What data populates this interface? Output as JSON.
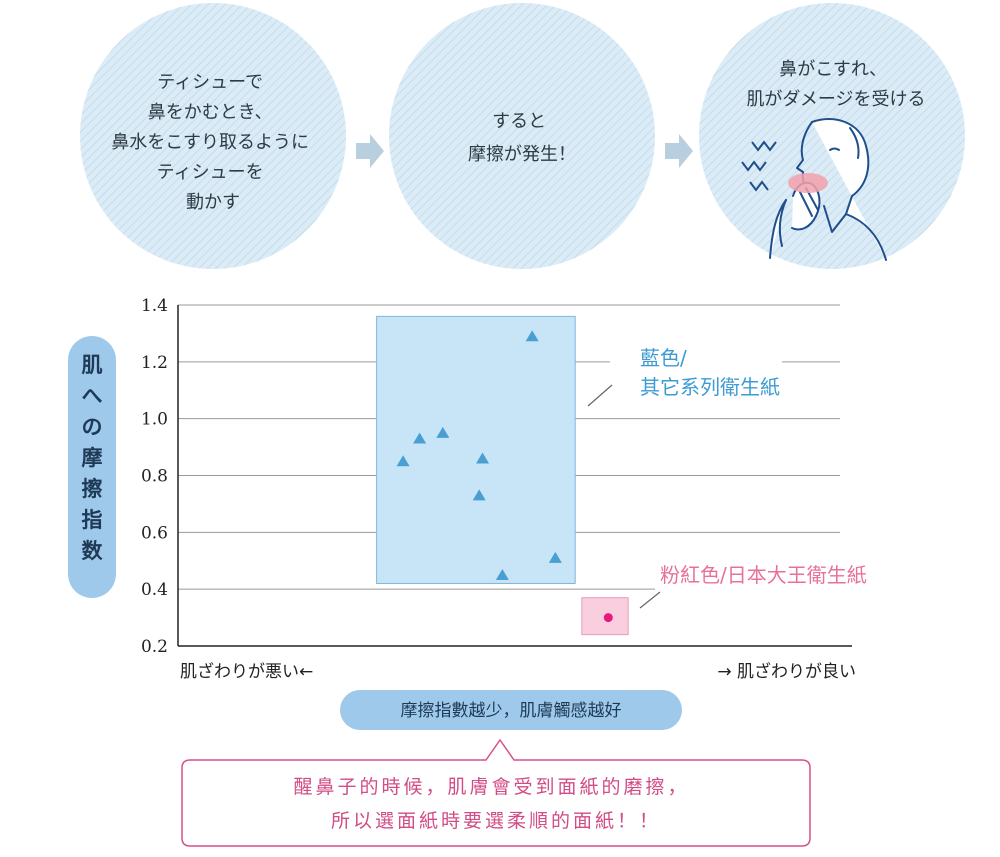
{
  "steps": [
    {
      "lines": [
        "ティシューで",
        "鼻をかむとき、",
        "鼻水をこすり取るように",
        "ティシューを",
        "動かす"
      ]
    },
    {
      "lines": [
        "すると",
        "摩擦が発生！"
      ]
    },
    {
      "lines": [
        "鼻がこすれ、",
        "肌がダメージを受ける"
      ]
    }
  ],
  "colors": {
    "circle_fill": "#dcecf6",
    "arrow": "#b8cfe0",
    "blue_region": "#c8e4f7",
    "blue_marker": "#4a9fd2",
    "pink_region": "#f9cfe0",
    "pink_marker": "#e8197a",
    "pill": "#9ec9ea",
    "note_border": "#d94f8c"
  },
  "chart_data": {
    "type": "scatter",
    "ylabel": "肌への摩擦指数",
    "ylim": [
      0.2,
      1.4
    ],
    "yticks": [
      "0.2",
      "0.4",
      "0.6",
      "0.8",
      "1.0",
      "1.2",
      "1.4"
    ],
    "x_left_label": "肌ざわりが悪い←",
    "x_right_label": "→ 肌ざわりが良い",
    "xlim": [
      0,
      10
    ],
    "series": [
      {
        "name": "藍色/其它系列衛生紙",
        "name_lines": [
          "藍色/",
          "其它系列衛生紙"
        ],
        "marker": "triangle",
        "range": {
          "x": [
            3.0,
            6.0
          ],
          "y": [
            0.42,
            1.36
          ]
        },
        "points": [
          {
            "x": 3.4,
            "y": 0.85
          },
          {
            "x": 3.65,
            "y": 0.93
          },
          {
            "x": 4.0,
            "y": 0.95
          },
          {
            "x": 4.6,
            "y": 0.86
          },
          {
            "x": 4.55,
            "y": 0.73
          },
          {
            "x": 4.9,
            "y": 0.45
          },
          {
            "x": 5.35,
            "y": 1.29
          },
          {
            "x": 5.7,
            "y": 0.51
          }
        ]
      },
      {
        "name": "粉紅色/日本大王衛生紙",
        "marker": "circle",
        "range": {
          "x": [
            6.1,
            6.8
          ],
          "y": [
            0.24,
            0.37
          ]
        },
        "points": [
          {
            "x": 6.5,
            "y": 0.3
          }
        ]
      }
    ]
  },
  "caption_pill": "摩擦指數越少，肌膚觸感越好",
  "note": [
    "醒鼻子的時候，肌膚會受到面紙的磨擦，",
    "所以選面紙時要選柔順的面紙！！"
  ]
}
